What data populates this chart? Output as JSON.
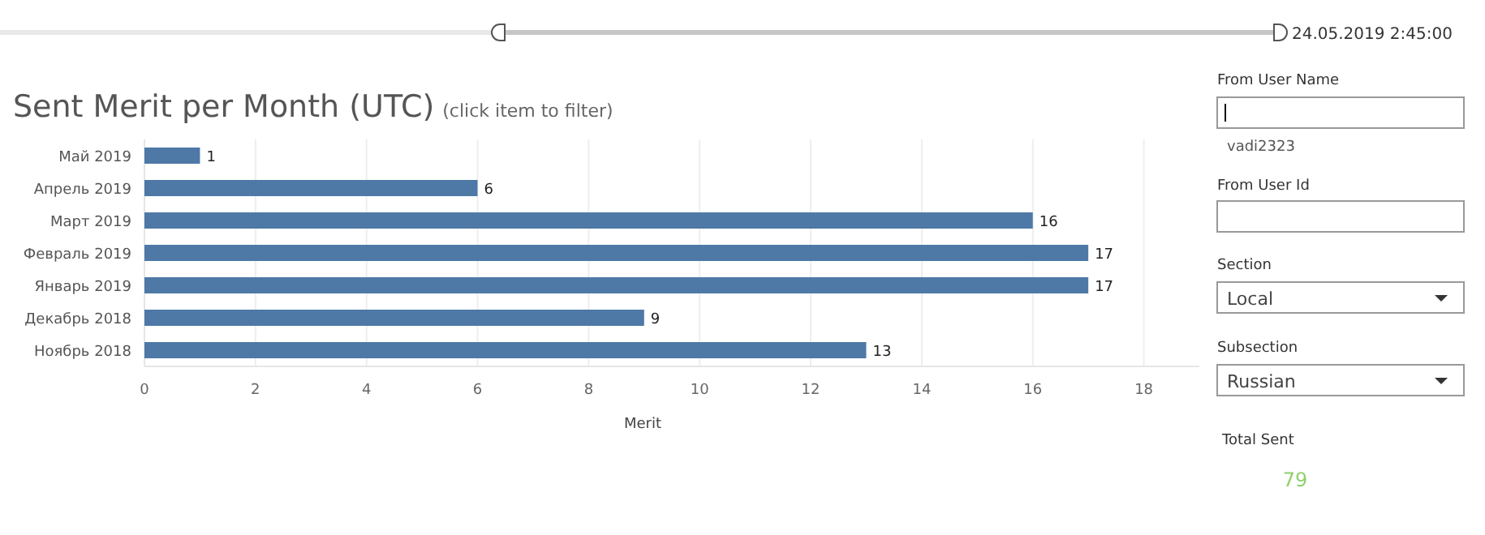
{
  "chart_data": [
    {
      "type": "bar",
      "orientation": "horizontal",
      "title": "Sent Merit per Month (UTC)",
      "subtitle": "(click item to filter)",
      "xlabel": "Merit",
      "categories": [
        "Май 2019",
        "Апрель 2019",
        "Март 2019",
        "Февраль 2019",
        "Январь 2019",
        "Декабрь 2018",
        "Ноябрь 2018"
      ],
      "values": [
        1,
        6,
        16,
        17,
        17,
        9,
        13
      ],
      "color": "#4e79a7",
      "data_labels": true,
      "xlim": [
        0,
        19
      ],
      "xticks": [
        0,
        2,
        4,
        6,
        8,
        10,
        12,
        14,
        16,
        18
      ],
      "grid": "x"
    },
    {
      "type": "other",
      "annotations": [
        "24.05.2019 2:45:00",
        "From User Name",
        "vadi2323",
        "From User Id",
        "Section",
        "Local",
        "Subsection",
        "Russian",
        "Total Sent",
        "79"
      ]
    }
  ]
}
